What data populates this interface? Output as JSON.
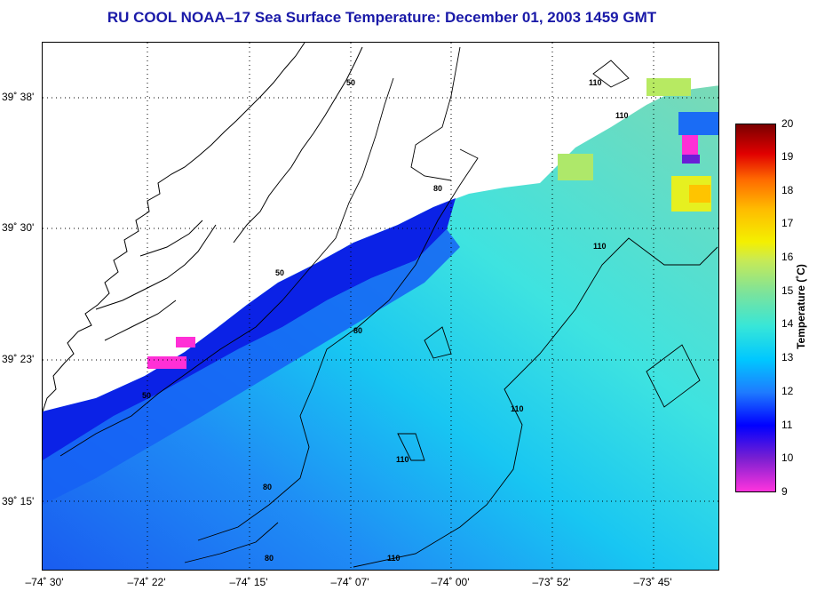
{
  "title": "RU COOL  NOAA–17  Sea Surface Temperature:  December 01, 2003 1459 GMT",
  "map": {
    "lat_labels": [
      "39˚ 38'",
      "39˚ 30'",
      "39˚ 23'",
      "39˚ 15'"
    ],
    "lon_labels": [
      "–74˚ 30'",
      "–74˚ 22'",
      "–74˚ 15'",
      "–74˚ 07'",
      "–74˚ 00'",
      "–73˚ 52'",
      "–73˚ 45'"
    ],
    "contour_labels": [
      "50",
      "50",
      "50",
      "80",
      "80",
      "80",
      "80",
      "110",
      "110",
      "110",
      "110",
      "110"
    ],
    "grid": true
  },
  "colorbar": {
    "label": "Temperature (˚C)",
    "ticks": [
      "20",
      "19",
      "18",
      "17",
      "16",
      "15",
      "14",
      "13",
      "12",
      "11",
      "10",
      "9"
    ],
    "min": 9,
    "max": 20,
    "colors": [
      "#ff33dd",
      "#7a1fd1",
      "#0000ff",
      "#1e7bff",
      "#00c8ff",
      "#37e6d8",
      "#7be39c",
      "#c8ea55",
      "#f4f000",
      "#ffbb00",
      "#ff6a00",
      "#e10000",
      "#7a0000"
    ]
  }
}
